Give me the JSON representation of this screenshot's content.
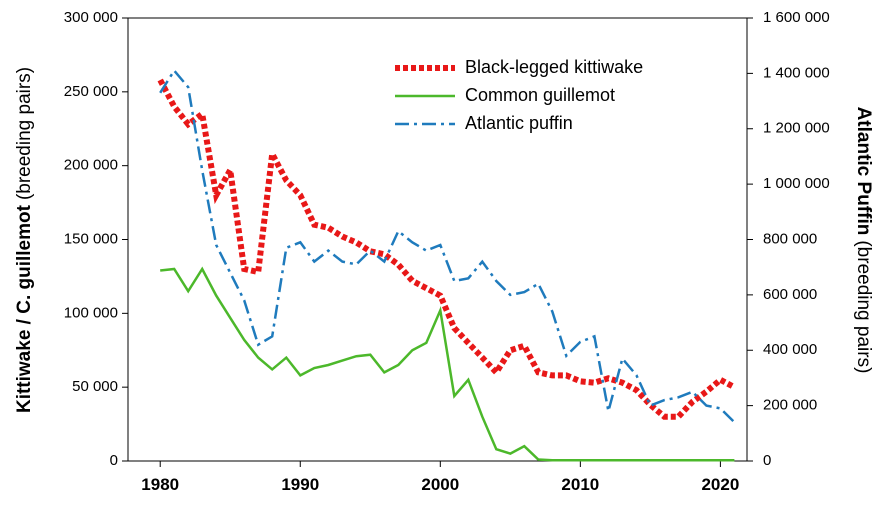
{
  "chart_data": {
    "type": "line",
    "y_label_bold": "Kittiwake / C. guillemot",
    "y_label_rest": "(breeding pairs)",
    "y2_label_bold": "Atlantic Puffin",
    "y2_label_rest": "(breeding pairs)",
    "x": [
      1980,
      1981,
      1982,
      1983,
      1984,
      1985,
      1986,
      1987,
      1988,
      1989,
      1990,
      1991,
      1992,
      1993,
      1994,
      1995,
      1996,
      1997,
      1998,
      1999,
      2000,
      2001,
      2002,
      2003,
      2004,
      2005,
      2006,
      2007,
      2008,
      2009,
      2010,
      2011,
      2012,
      2013,
      2014,
      2015,
      2016,
      2017,
      2018,
      2019,
      2020,
      2021
    ],
    "xlim": [
      1977.7,
      2021.9
    ],
    "xticks": [
      1980,
      1990,
      2000,
      2010,
      2020
    ],
    "ylim": [
      0,
      300000
    ],
    "yticks": [
      {
        "value": 0,
        "label": "0"
      },
      {
        "value": 50000,
        "label": "50 000"
      },
      {
        "value": 100000,
        "label": "100 000"
      },
      {
        "value": 150000,
        "label": "150 000"
      },
      {
        "value": 200000,
        "label": "200 000"
      },
      {
        "value": 250000,
        "label": "250 000"
      },
      {
        "value": 300000,
        "label": "300 000"
      }
    ],
    "y2lim": [
      0,
      1600000
    ],
    "y2ticks": [
      {
        "value": 0,
        "label": "0"
      },
      {
        "value": 200000,
        "label": "200 000"
      },
      {
        "value": 400000,
        "label": "400 000"
      },
      {
        "value": 600000,
        "label": "600 000"
      },
      {
        "value": 800000,
        "label": "800 000"
      },
      {
        "value": 1000000,
        "label": "1 000 000"
      },
      {
        "value": 1200000,
        "label": "1 200 000"
      },
      {
        "value": 1400000,
        "label": "1 400 000"
      },
      {
        "value": 1600000,
        "label": "1 600 000"
      }
    ],
    "series": [
      {
        "name": "Black-legged kittiwake",
        "color": "#e81818",
        "style": "dotted",
        "values": [
          258000,
          240000,
          228000,
          235000,
          180000,
          197000,
          130000,
          128000,
          208000,
          190000,
          180000,
          160000,
          158000,
          152000,
          148000,
          142000,
          140000,
          133000,
          122000,
          117000,
          112000,
          90000,
          80000,
          70000,
          60000,
          75000,
          78000,
          60000,
          58000,
          58000,
          54000,
          53000,
          56000,
          53000,
          48000,
          38000,
          30000,
          30000,
          40000,
          47000,
          55000,
          50000
        ]
      },
      {
        "name": "Common guillemot",
        "color": "#4cb82b",
        "style": "solid",
        "values": [
          129000,
          130000,
          115000,
          130000,
          112000,
          97000,
          82000,
          70000,
          62000,
          70000,
          58000,
          63000,
          65000,
          68000,
          71000,
          72000,
          60000,
          65000,
          75000,
          80000,
          102000,
          44000,
          55000,
          30000,
          8000,
          5000,
          10000,
          1000,
          500,
          500,
          500,
          500,
          500,
          500,
          500,
          500,
          500,
          500,
          500,
          500,
          500,
          500
        ]
      },
      {
        "name": "Atlantic puffin",
        "color": "#1f7bbd",
        "style": "dashdot",
        "axis": "y2",
        "values": [
          1330000,
          1410000,
          1350000,
          1050000,
          780000,
          680000,
          580000,
          420000,
          450000,
          770000,
          790000,
          720000,
          760000,
          720000,
          710000,
          760000,
          720000,
          830000,
          790000,
          760000,
          780000,
          650000,
          660000,
          720000,
          650000,
          600000,
          610000,
          640000,
          540000,
          380000,
          430000,
          450000,
          180000,
          370000,
          310000,
          200000,
          220000,
          230000,
          250000,
          200000,
          190000,
          140000
        ]
      }
    ]
  }
}
